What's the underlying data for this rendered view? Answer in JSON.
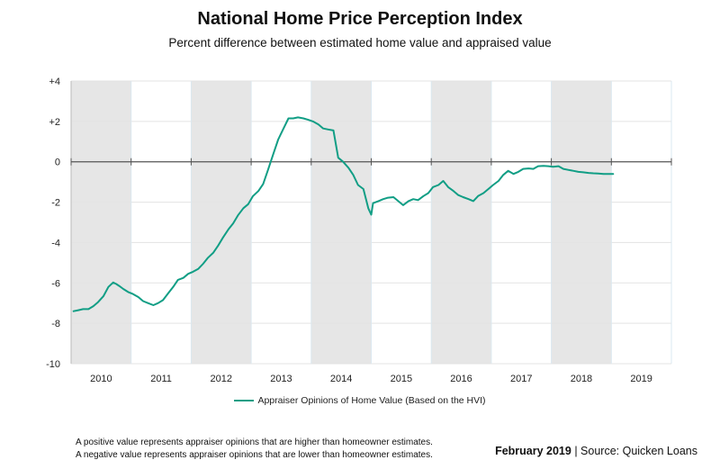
{
  "header": {
    "title": "National Home Price Perception Index",
    "subtitle": "Percent difference between estimated home value and appraised value"
  },
  "notes": {
    "line1": "A positive value represents appraiser opinions that are higher than homeowner estimates.",
    "line2": "A negative value represents appraiser opinions that are lower than homeowner estimates."
  },
  "footer": {
    "date": "February 2019",
    "separator": " | ",
    "source": "Source: Quicken Loans"
  },
  "colors": {
    "line": "#119e85",
    "shade": "#e6e6e6",
    "grid": "#e3e3e3",
    "zero_line": "#555555"
  },
  "chart_data": {
    "type": "line",
    "title": "National Home Price Perception Index",
    "subtitle": "Percent difference between estimated home value and appraised value",
    "xlabel": "",
    "ylabel": "",
    "xlim": [
      2009.5,
      2019.5
    ],
    "ylim": [
      -10,
      4
    ],
    "y_ticks": [
      4,
      2,
      0,
      -2,
      -4,
      -6,
      -8,
      -10
    ],
    "y_tick_labels": [
      "+4",
      "+2",
      "0",
      "-2",
      "-4",
      "-6",
      "-8",
      "-10"
    ],
    "x_tick_labels": [
      "2010",
      "2011",
      "2012",
      "2013",
      "2014",
      "2015",
      "2016",
      "2017",
      "2018",
      "2019"
    ],
    "shaded_years": [
      "2010",
      "2012",
      "2014",
      "2016",
      "2018"
    ],
    "grid": true,
    "legend_position": "bottom-center",
    "series": [
      {
        "name": "Appraiser Opinions of Home Value (Based on the HVI)",
        "x": [
          2009.54,
          2009.62,
          2009.7,
          2009.79,
          2009.87,
          2009.95,
          2010.04,
          2010.12,
          2010.2,
          2010.25,
          2010.3,
          2010.37,
          2010.45,
          2010.53,
          2010.62,
          2010.7,
          2010.78,
          2010.87,
          2010.95,
          2011.03,
          2011.12,
          2011.2,
          2011.28,
          2011.37,
          2011.45,
          2011.53,
          2011.62,
          2011.7,
          2011.78,
          2011.87,
          2011.95,
          2012.03,
          2012.12,
          2012.2,
          2012.28,
          2012.37,
          2012.45,
          2012.53,
          2012.62,
          2012.7,
          2012.78,
          2012.87,
          2012.95,
          2013.03,
          2013.12,
          2013.2,
          2013.28,
          2013.37,
          2013.45,
          2013.53,
          2013.62,
          2013.7,
          2013.78,
          2013.87,
          2013.95,
          2014.03,
          2014.12,
          2014.2,
          2014.28,
          2014.37,
          2014.45,
          2014.5,
          2014.53,
          2014.62,
          2014.7,
          2014.78,
          2014.87,
          2014.95,
          2015.03,
          2015.12,
          2015.2,
          2015.28,
          2015.37,
          2015.45,
          2015.53,
          2015.62,
          2015.7,
          2015.78,
          2015.87,
          2015.95,
          2016.03,
          2016.12,
          2016.2,
          2016.28,
          2016.37,
          2016.45,
          2016.53,
          2016.62,
          2016.7,
          2016.78,
          2016.87,
          2016.95,
          2017.03,
          2017.12,
          2017.2,
          2017.28,
          2017.37,
          2017.45,
          2017.53,
          2017.62,
          2017.7,
          2017.78,
          2017.87,
          2017.95,
          2018.03,
          2018.12,
          2018.2,
          2018.28,
          2018.37,
          2018.45,
          2018.53
        ],
        "y": [
          -7.4,
          -7.35,
          -7.3,
          -7.3,
          -7.15,
          -6.95,
          -6.65,
          -6.2,
          -5.98,
          -6.05,
          -6.15,
          -6.3,
          -6.45,
          -6.55,
          -6.7,
          -6.9,
          -7.0,
          -7.1,
          -7.0,
          -6.85,
          -6.5,
          -6.2,
          -5.85,
          -5.75,
          -5.55,
          -5.45,
          -5.3,
          -5.05,
          -4.75,
          -4.5,
          -4.15,
          -3.75,
          -3.35,
          -3.05,
          -2.65,
          -2.3,
          -2.1,
          -1.7,
          -1.45,
          -1.1,
          -0.4,
          0.4,
          1.1,
          1.6,
          2.15,
          2.15,
          2.2,
          2.15,
          2.08,
          2.0,
          1.85,
          1.65,
          1.6,
          1.55,
          0.2,
          0.0,
          -0.3,
          -0.65,
          -1.15,
          -1.35,
          -2.3,
          -2.62,
          -2.05,
          -1.95,
          -1.85,
          -1.78,
          -1.75,
          -1.95,
          -2.15,
          -1.95,
          -1.85,
          -1.9,
          -1.7,
          -1.55,
          -1.25,
          -1.15,
          -0.95,
          -1.25,
          -1.45,
          -1.65,
          -1.75,
          -1.85,
          -1.95,
          -1.7,
          -1.55,
          -1.35,
          -1.15,
          -0.95,
          -0.65,
          -0.45,
          -0.6,
          -0.5,
          -0.35,
          -0.33,
          -0.35,
          -0.22,
          -0.2,
          -0.22,
          -0.25,
          -0.22,
          -0.35,
          -0.4,
          -0.45,
          -0.5,
          -0.52,
          -0.55,
          -0.57,
          -0.58,
          -0.6,
          -0.6,
          -0.6
        ]
      }
    ]
  }
}
